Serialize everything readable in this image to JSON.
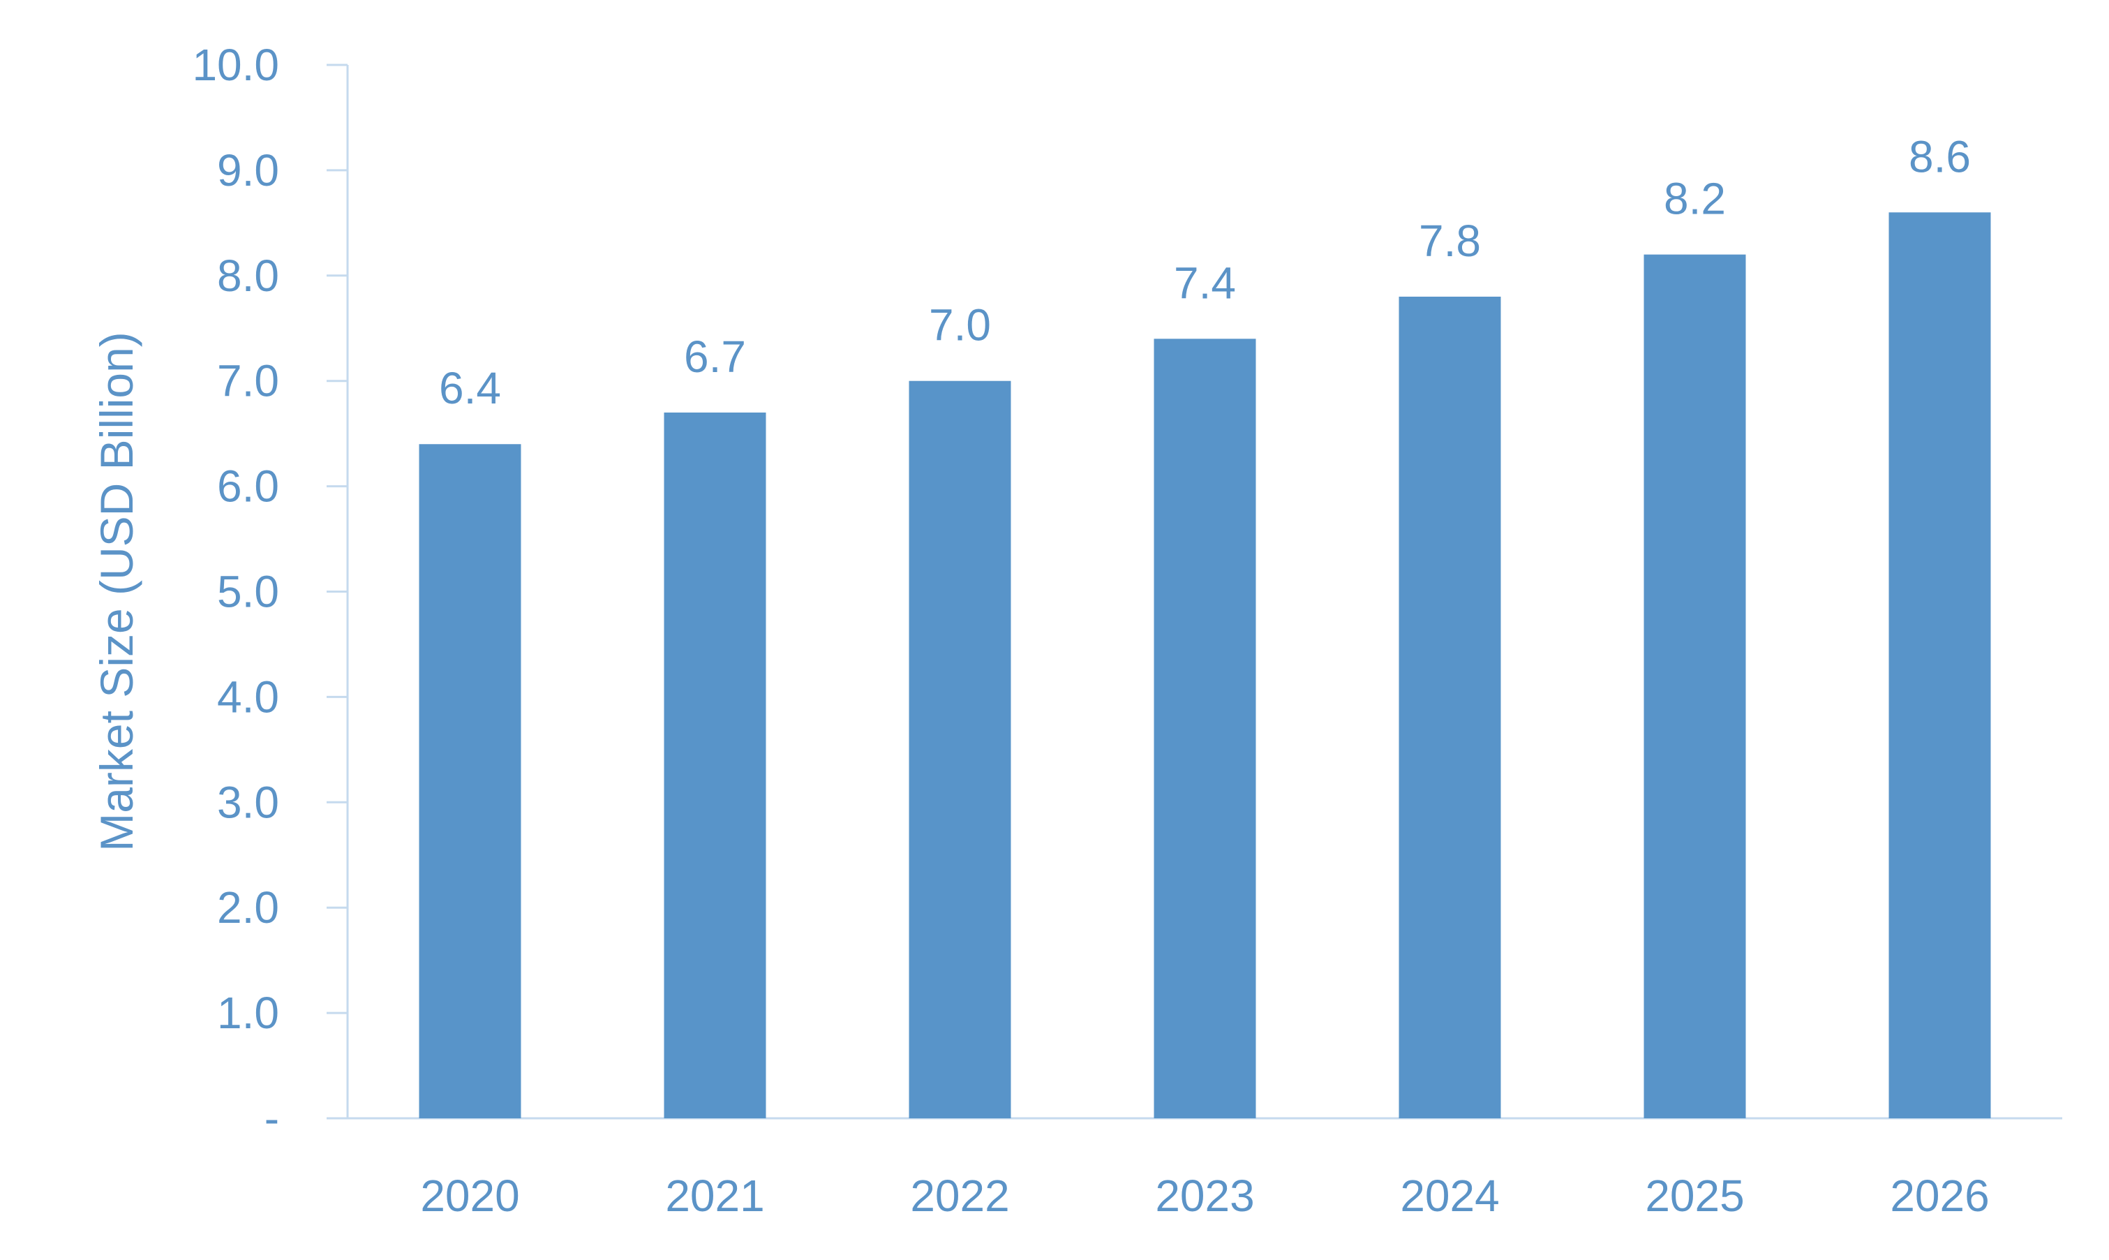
{
  "chart_data": {
    "type": "bar",
    "title": "",
    "xlabel": "",
    "ylabel": "Market Size (USD Billion)",
    "categories": [
      "2020",
      "2021",
      "2022",
      "2023",
      "2024",
      "2025",
      "2026"
    ],
    "values": [
      6.4,
      6.7,
      7.0,
      7.4,
      7.8,
      8.2,
      8.6
    ],
    "data_labels": [
      "6.4",
      "6.7",
      "7.0",
      "7.4",
      "7.8",
      "8.2",
      "8.6"
    ],
    "yticks": [
      0,
      1,
      2,
      3,
      4,
      5,
      6,
      7,
      8,
      9,
      10
    ],
    "ytick_labels": [
      "-",
      "1.0",
      "2.0",
      "3.0",
      "4.0",
      "5.0",
      "6.0",
      "7.0",
      "8.0",
      "9.0",
      "10.0"
    ],
    "ylim": [
      0,
      10
    ],
    "grid": false,
    "legend": "none",
    "colors": {
      "bar": "#5894c9",
      "text": "#5b93c7",
      "axis": "#c5daee"
    }
  }
}
